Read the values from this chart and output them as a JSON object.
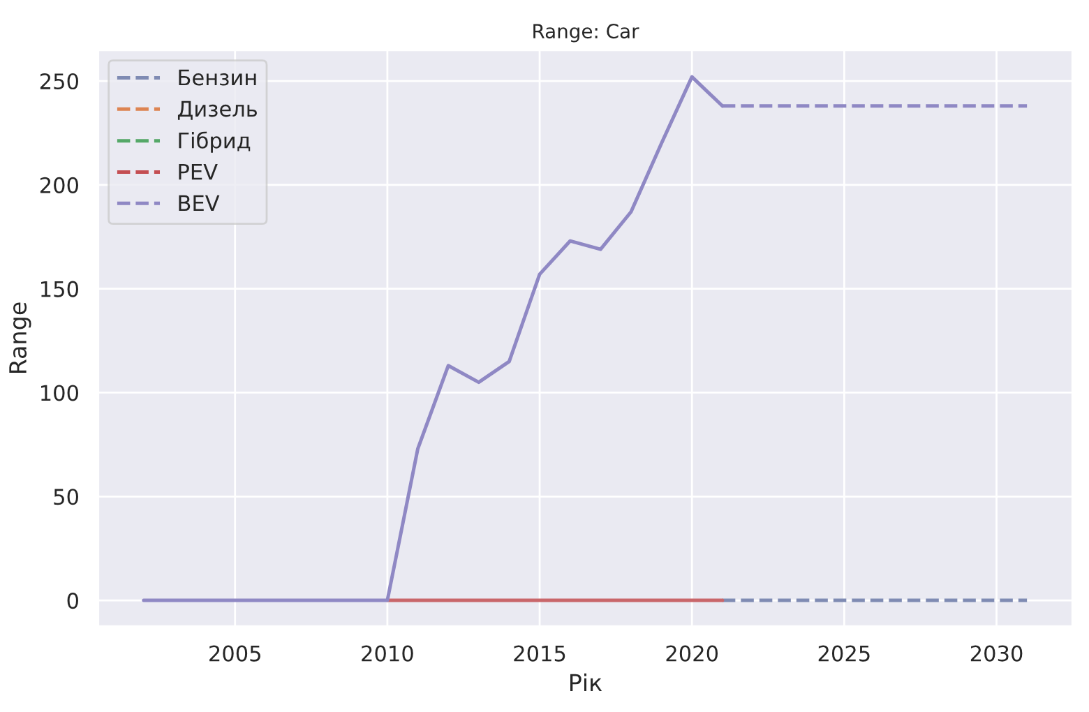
{
  "chart_data": {
    "type": "line",
    "title": "Range: Car",
    "xlabel": "Рік",
    "ylabel": "Range",
    "xlim": [
      2000.5,
      2032.5
    ],
    "ylim": [
      -12.6,
      265
    ],
    "xticks": [
      2005,
      2010,
      2015,
      2020,
      2025,
      2030
    ],
    "yticks": [
      0,
      50,
      100,
      150,
      200,
      250
    ],
    "grid": true,
    "legend": "top left",
    "marker": "none",
    "series": [
      {
        "name": "Бензин",
        "color": "#7f8bb3",
        "line_style": "dashed",
        "x": [
          2021,
          2022,
          2023,
          2024,
          2025,
          2026,
          2027,
          2028,
          2029,
          2030,
          2031
        ],
        "values": [
          0,
          0,
          0,
          0,
          0,
          0,
          0,
          0,
          0,
          0,
          0
        ]
      },
      {
        "name": "Дизель",
        "color": "#dd8452",
        "line_style": "dashed"
      },
      {
        "name": "Гібрид",
        "color": "#55a868",
        "line_style": "dashed"
      },
      {
        "name": "PEV",
        "color": "#c44e52",
        "line_style": "dashed"
      },
      {
        "name": "BEV",
        "color": "#8f88c4",
        "line_style": "dashed",
        "x": [
          2021,
          2022,
          2023,
          2024,
          2025,
          2026,
          2027,
          2028,
          2029,
          2030,
          2031
        ],
        "values": [
          238,
          238,
          238,
          238,
          238,
          238,
          238,
          238,
          238,
          238,
          238
        ]
      },
      {
        "color": "#c9666a",
        "line_style": "solid",
        "x": [
          2010,
          2011,
          2012,
          2013,
          2014,
          2015,
          2016,
          2017,
          2018,
          2019,
          2020,
          2021
        ],
        "values": [
          0,
          0,
          0,
          0,
          0,
          0,
          0,
          0,
          0,
          0,
          0,
          0
        ]
      },
      {
        "color": "#8f88c4",
        "line_style": "solid",
        "x": [
          2002,
          2003,
          2004,
          2005,
          2006,
          2007,
          2008,
          2009,
          2010,
          2011,
          2012,
          2013,
          2014,
          2015,
          2016,
          2017,
          2018,
          2019,
          2020,
          2021
        ],
        "values": [
          0,
          0,
          0,
          0,
          0,
          0,
          0,
          0,
          0,
          73,
          113,
          105,
          115,
          157,
          173,
          169,
          187,
          220,
          252,
          238
        ]
      }
    ]
  }
}
